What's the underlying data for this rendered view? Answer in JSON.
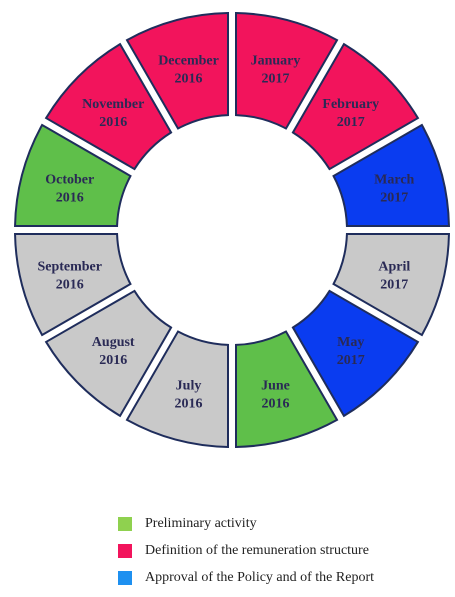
{
  "segments": [
    {
      "month": "January",
      "year": "2017",
      "color": "#f2145c"
    },
    {
      "month": "February",
      "year": "2017",
      "color": "#f2145c"
    },
    {
      "month": "March",
      "year": "2017",
      "color": "#0a3cf0"
    },
    {
      "month": "April",
      "year": "2017",
      "color": "#c9c9c9"
    },
    {
      "month": "May",
      "year": "2017",
      "color": "#0a3cf0"
    },
    {
      "month": "June",
      "year": "2016",
      "color": "#5fbf4a"
    },
    {
      "month": "July",
      "year": "2016",
      "color": "#c9c9c9"
    },
    {
      "month": "August",
      "year": "2016",
      "color": "#c9c9c9"
    },
    {
      "month": "September",
      "year": "2016",
      "color": "#c9c9c9"
    },
    {
      "month": "October",
      "year": "2016",
      "color": "#5fbf4a"
    },
    {
      "month": "November",
      "year": "2016",
      "color": "#f2145c"
    },
    {
      "month": "December",
      "year": "2016",
      "color": "#f2145c"
    }
  ],
  "legend": [
    {
      "label": "Preliminary activity",
      "color": "#8fd14f"
    },
    {
      "label": "Definition of the remuneration structure",
      "color": "#f2145c"
    },
    {
      "label": "Approval of the Policy and of the Report",
      "color": "#1e90f0"
    }
  ]
}
